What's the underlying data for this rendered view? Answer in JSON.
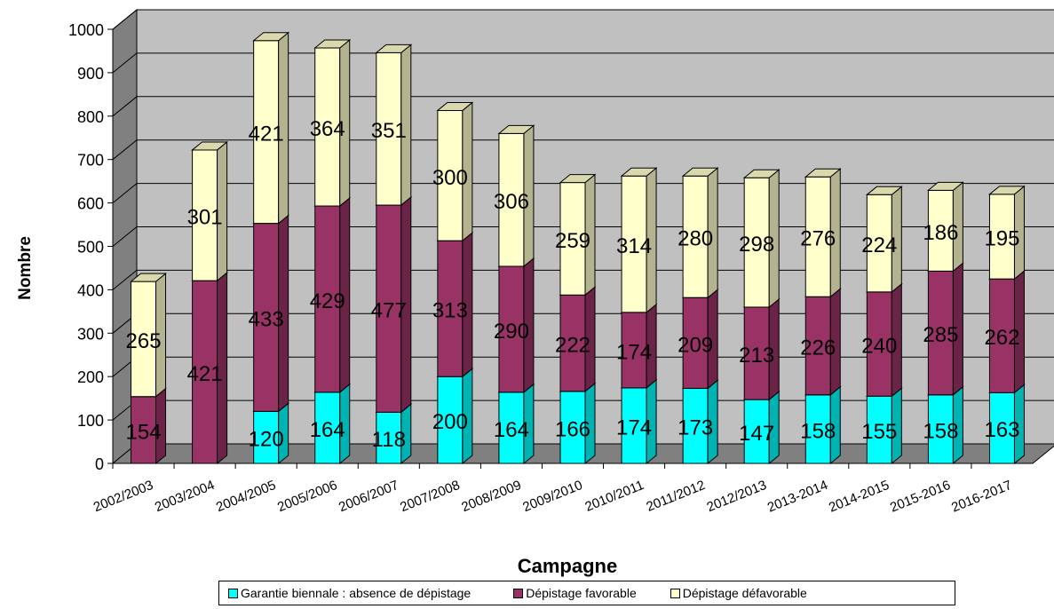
{
  "chart_data": {
    "type": "bar",
    "stacked": true,
    "three_d": true,
    "title": "",
    "xlabel": "Campagne",
    "ylabel": "Nombre",
    "ylim": [
      0,
      1000
    ],
    "yticks": [
      0,
      100,
      200,
      300,
      400,
      500,
      600,
      700,
      800,
      900,
      1000
    ],
    "grid": true,
    "legend_position": "bottom",
    "categories": [
      "2002/2003",
      "2003/2004",
      "2004/2005",
      "2005/2006",
      "2006/2007",
      "2007/2008",
      "2008/2009",
      "2009/2010",
      "2010/2011",
      "2011/2012",
      "2012/2013",
      "2013-2014",
      "2014-2015",
      "2015-2016",
      "2016-2017"
    ],
    "series": [
      {
        "name": "Garantie biennale : absence de dépistage",
        "color": "#00FFFF",
        "values": [
          null,
          null,
          120,
          164,
          118,
          200,
          164,
          166,
          174,
          173,
          147,
          158,
          155,
          158,
          163
        ]
      },
      {
        "name": "Dépistage favorable",
        "color": "#993366",
        "values": [
          154,
          421,
          433,
          429,
          477,
          313,
          290,
          222,
          174,
          209,
          213,
          226,
          240,
          285,
          262
        ]
      },
      {
        "name": "Dépistage défavorable",
        "color": "#FFFFCC",
        "values": [
          265,
          301,
          421,
          364,
          351,
          300,
          306,
          259,
          314,
          280,
          298,
          276,
          224,
          186,
          195
        ]
      }
    ],
    "colors": {
      "wall": "#C0C0C0",
      "wall_side": "#808080",
      "floor": "#808080"
    }
  }
}
